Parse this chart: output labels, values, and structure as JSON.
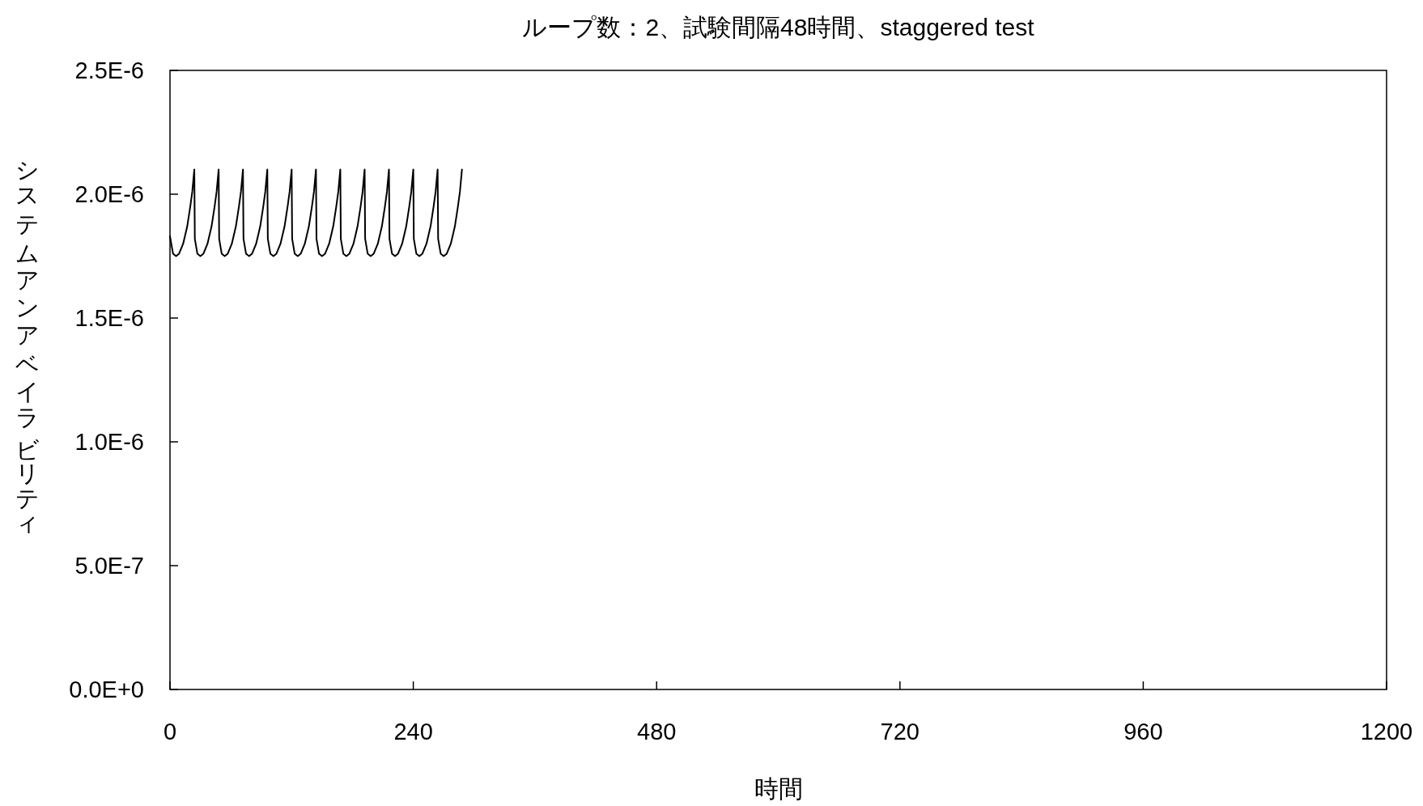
{
  "chart_data": {
    "type": "line",
    "title": "ループ数：2、試験間隔48時間、staggered test",
    "xlabel": "時間",
    "ylabel": "システムアンアベイラビリティ",
    "x": [
      0,
      3,
      6,
      9,
      13,
      17,
      20,
      22,
      24,
      24.5,
      27,
      30,
      33,
      37,
      41,
      44,
      46,
      48,
      48.5,
      51,
      54,
      57,
      61,
      65,
      68,
      70,
      72,
      72.5,
      75,
      78,
      81,
      85,
      89,
      92,
      94,
      96,
      96.5,
      99,
      102,
      105,
      109,
      113,
      116,
      118,
      120,
      120.5,
      123,
      126,
      129,
      133,
      137,
      140,
      142,
      144,
      144.5,
      147,
      150,
      153,
      157,
      161,
      164,
      166,
      168,
      168.5,
      171,
      174,
      177,
      181,
      185,
      188,
      190,
      192,
      192.5,
      195,
      198,
      201,
      205,
      209,
      212,
      214,
      216,
      216.5,
      219,
      222,
      225,
      229,
      233,
      236,
      238,
      240,
      240.5,
      243,
      246,
      249,
      253,
      257,
      260,
      262,
      264,
      264.5,
      267,
      270,
      273,
      277,
      281,
      284,
      286,
      288
    ],
    "series": [
      {
        "color": "#000000",
        "values": [
          1.83e-06,
          1.76e-06,
          1.75e-06,
          1.76e-06,
          1.8e-06,
          1.87e-06,
          1.95e-06,
          2.01e-06,
          2.1e-06,
          1.82e-06,
          1.76e-06,
          1.75e-06,
          1.76e-06,
          1.8e-06,
          1.87e-06,
          1.95e-06,
          2.01e-06,
          2.1e-06,
          1.82e-06,
          1.76e-06,
          1.75e-06,
          1.76e-06,
          1.8e-06,
          1.87e-06,
          1.95e-06,
          2.01e-06,
          2.1e-06,
          1.82e-06,
          1.76e-06,
          1.75e-06,
          1.76e-06,
          1.8e-06,
          1.87e-06,
          1.95e-06,
          2.01e-06,
          2.1e-06,
          1.82e-06,
          1.76e-06,
          1.75e-06,
          1.76e-06,
          1.8e-06,
          1.87e-06,
          1.95e-06,
          2.01e-06,
          2.1e-06,
          1.82e-06,
          1.76e-06,
          1.75e-06,
          1.76e-06,
          1.8e-06,
          1.87e-06,
          1.95e-06,
          2.01e-06,
          2.1e-06,
          1.82e-06,
          1.76e-06,
          1.75e-06,
          1.76e-06,
          1.8e-06,
          1.87e-06,
          1.95e-06,
          2.01e-06,
          2.1e-06,
          1.82e-06,
          1.76e-06,
          1.75e-06,
          1.76e-06,
          1.8e-06,
          1.87e-06,
          1.95e-06,
          2.01e-06,
          2.1e-06,
          1.82e-06,
          1.76e-06,
          1.75e-06,
          1.76e-06,
          1.8e-06,
          1.87e-06,
          1.95e-06,
          2.01e-06,
          2.1e-06,
          1.82e-06,
          1.76e-06,
          1.75e-06,
          1.76e-06,
          1.8e-06,
          1.87e-06,
          1.95e-06,
          2.01e-06,
          2.1e-06,
          1.82e-06,
          1.76e-06,
          1.75e-06,
          1.76e-06,
          1.8e-06,
          1.87e-06,
          1.95e-06,
          2.01e-06,
          2.1e-06,
          1.82e-06,
          1.76e-06,
          1.75e-06,
          1.76e-06,
          1.8e-06,
          1.87e-06,
          1.95e-06,
          2.01e-06,
          2.1e-06
        ]
      }
    ],
    "xlim": [
      0,
      1200
    ],
    "xticks": [
      0,
      240,
      480,
      720,
      960,
      1200
    ],
    "ylim": [
      0,
      2.5e-06
    ],
    "yticks": [
      {
        "value": 0,
        "label": "0.0E+0"
      },
      {
        "value": 5e-07,
        "label": "5.0E-7"
      },
      {
        "value": 1e-06,
        "label": "1.0E-6"
      },
      {
        "value": 1.5e-06,
        "label": "1.5E-6"
      },
      {
        "value": 2e-06,
        "label": "2.0E-6"
      },
      {
        "value": 2.5e-06,
        "label": "2.5E-6"
      }
    ]
  }
}
